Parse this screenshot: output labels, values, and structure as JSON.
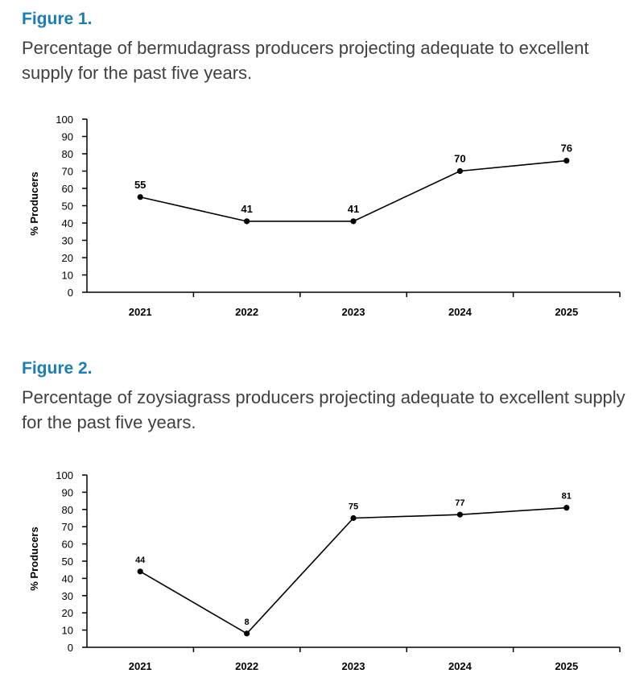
{
  "figure1": {
    "label": "Figure 1.",
    "caption": "Percentage of bermudagrass producers projecting adequate to excellent supply for the past five years."
  },
  "figure2": {
    "label": "Figure 2.",
    "caption": "Percentage of zoysiagrass producers projecting adequate to excellent supply for the past five years."
  },
  "chart_data": [
    {
      "type": "line",
      "title": "",
      "xlabel": "",
      "ylabel": "% Producers",
      "categories": [
        "2021",
        "2022",
        "2023",
        "2024",
        "2025"
      ],
      "values": [
        55,
        41,
        41,
        70,
        76
      ],
      "ylim": [
        0,
        100
      ],
      "yticks": [
        0,
        10,
        20,
        30,
        40,
        50,
        60,
        70,
        80,
        90,
        100
      ],
      "data_labels": [
        "55",
        "41",
        "41",
        "70",
        "76"
      ],
      "grid": false,
      "legend": "none"
    },
    {
      "type": "line",
      "title": "",
      "xlabel": "",
      "ylabel": "% Producers",
      "categories": [
        "2021",
        "2022",
        "2023",
        "2024",
        "2025"
      ],
      "values": [
        44,
        8,
        75,
        77,
        81
      ],
      "ylim": [
        0,
        100
      ],
      "yticks": [
        0,
        10,
        20,
        30,
        40,
        50,
        60,
        70,
        80,
        90,
        100
      ],
      "data_labels": [
        "44",
        "8",
        "75",
        "77",
        "81"
      ],
      "grid": false,
      "legend": "none"
    }
  ]
}
